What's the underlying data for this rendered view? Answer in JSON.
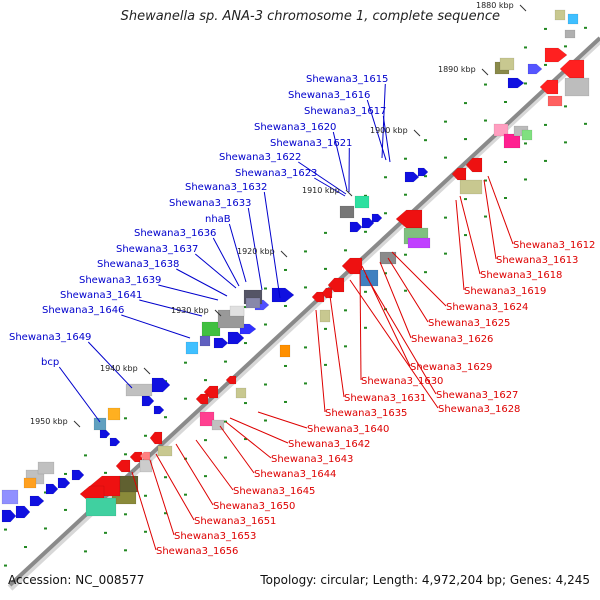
{
  "title": "Shewanella sp. ANA-3 chromosome 1, complete sequence",
  "accession": "Accession: NC_008577",
  "summary": "Topology: circular; Length: 4,972,204 bp; Genes: 4,245",
  "scale_marks": [
    "1880 kbp",
    "1890 kbp",
    "1900 kbp",
    "1910 kbp",
    "1920 kbp",
    "1930 kbp",
    "1940 kbp",
    "1950 kbp"
  ],
  "colors": {
    "upper_strand_label": "#0000cc",
    "lower_strand_label": "#dd0000",
    "backbone": "#8a8a8a",
    "tick": "#228822"
  },
  "forward_labels": [
    "Shewana3_1615",
    "Shewana3_1616",
    "Shewana3_1617",
    "Shewana3_1620",
    "Shewana3_1621",
    "Shewana3_1622",
    "Shewana3_1623",
    "Shewana3_1632",
    "Shewana3_1633",
    "nhaB",
    "Shewana3_1636",
    "Shewana3_1637",
    "Shewana3_1638",
    "Shewana3_1639",
    "Shewana3_1641",
    "Shewana3_1646",
    "Shewana3_1649",
    "bcp"
  ],
  "reverse_labels": [
    "Shewana3_1612",
    "Shewana3_1613",
    "Shewana3_1618",
    "Shewana3_1619",
    "Shewana3_1624",
    "Shewana3_1625",
    "Shewana3_1626",
    "Shewana3_1629",
    "Shewana3_1630",
    "Shewana3_1627",
    "Shewana3_1628",
    "Shewana3_1631",
    "Shewana3_1635",
    "Shewana3_1640",
    "Shewana3_1642",
    "Shewana3_1643",
    "Shewana3_1644",
    "Shewana3_1645",
    "Shewana3_1650",
    "Shewana3_1651",
    "Shewana3_1653",
    "Shewana3_1656"
  ]
}
